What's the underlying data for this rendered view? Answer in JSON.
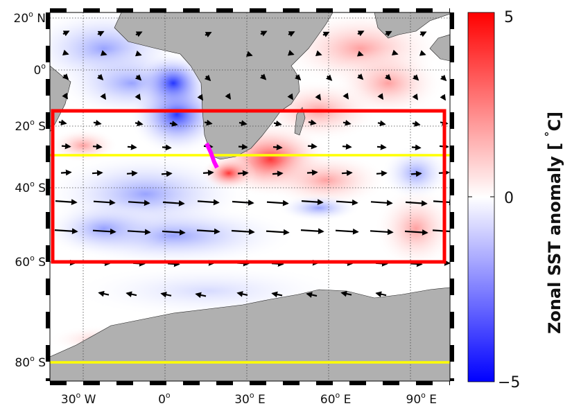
{
  "map": {
    "lat_labels": [
      {
        "deg": "20",
        "hemi": "N",
        "lat": 20
      },
      {
        "deg": "0",
        "hemi": "",
        "lat": 0
      },
      {
        "deg": "20",
        "hemi": "S",
        "lat": -20
      },
      {
        "deg": "40",
        "hemi": "S",
        "lat": -40
      },
      {
        "deg": "60",
        "hemi": "S",
        "lat": -60
      },
      {
        "deg": "80",
        "hemi": "S",
        "lat": -80
      }
    ],
    "lon_labels": [
      {
        "deg": "30",
        "hemi": "W",
        "lon": -30
      },
      {
        "deg": "0",
        "hemi": "",
        "lon": 0
      },
      {
        "deg": "30",
        "hemi": "E",
        "lon": 30
      },
      {
        "deg": "60",
        "hemi": "E",
        "lon": 60
      },
      {
        "deg": "90",
        "hemi": "E",
        "lon": 90
      }
    ],
    "extent": {
      "lon": [
        -40,
        100
      ],
      "lat": [
        -85,
        22
      ]
    },
    "boxes": {
      "red_region": {
        "lon": [
          -38,
          97
        ],
        "lat": [
          -60,
          -14
        ],
        "color": "#ff0000"
      },
      "yellow_lines": [
        {
          "lat": -30,
          "color": "#ffff00"
        },
        {
          "lat": -80,
          "color": "#ffff00"
        }
      ],
      "magenta_segment_color": "#ff00ff"
    },
    "land_color": "#b0b0b0",
    "vectors_color": "#000000"
  },
  "colorbar": {
    "title": "Zonal SST anomaly",
    "unit_deg": "°",
    "unit_c": "C",
    "ticks": [
      {
        "label": "5",
        "value": 5
      },
      {
        "label": "0",
        "value": 0
      },
      {
        "label": "−5",
        "value": -5
      }
    ],
    "range": [
      -5,
      5
    ],
    "colors": {
      "max": "#ff0000",
      "mid": "#ffffff",
      "min": "#0000ff"
    }
  }
}
